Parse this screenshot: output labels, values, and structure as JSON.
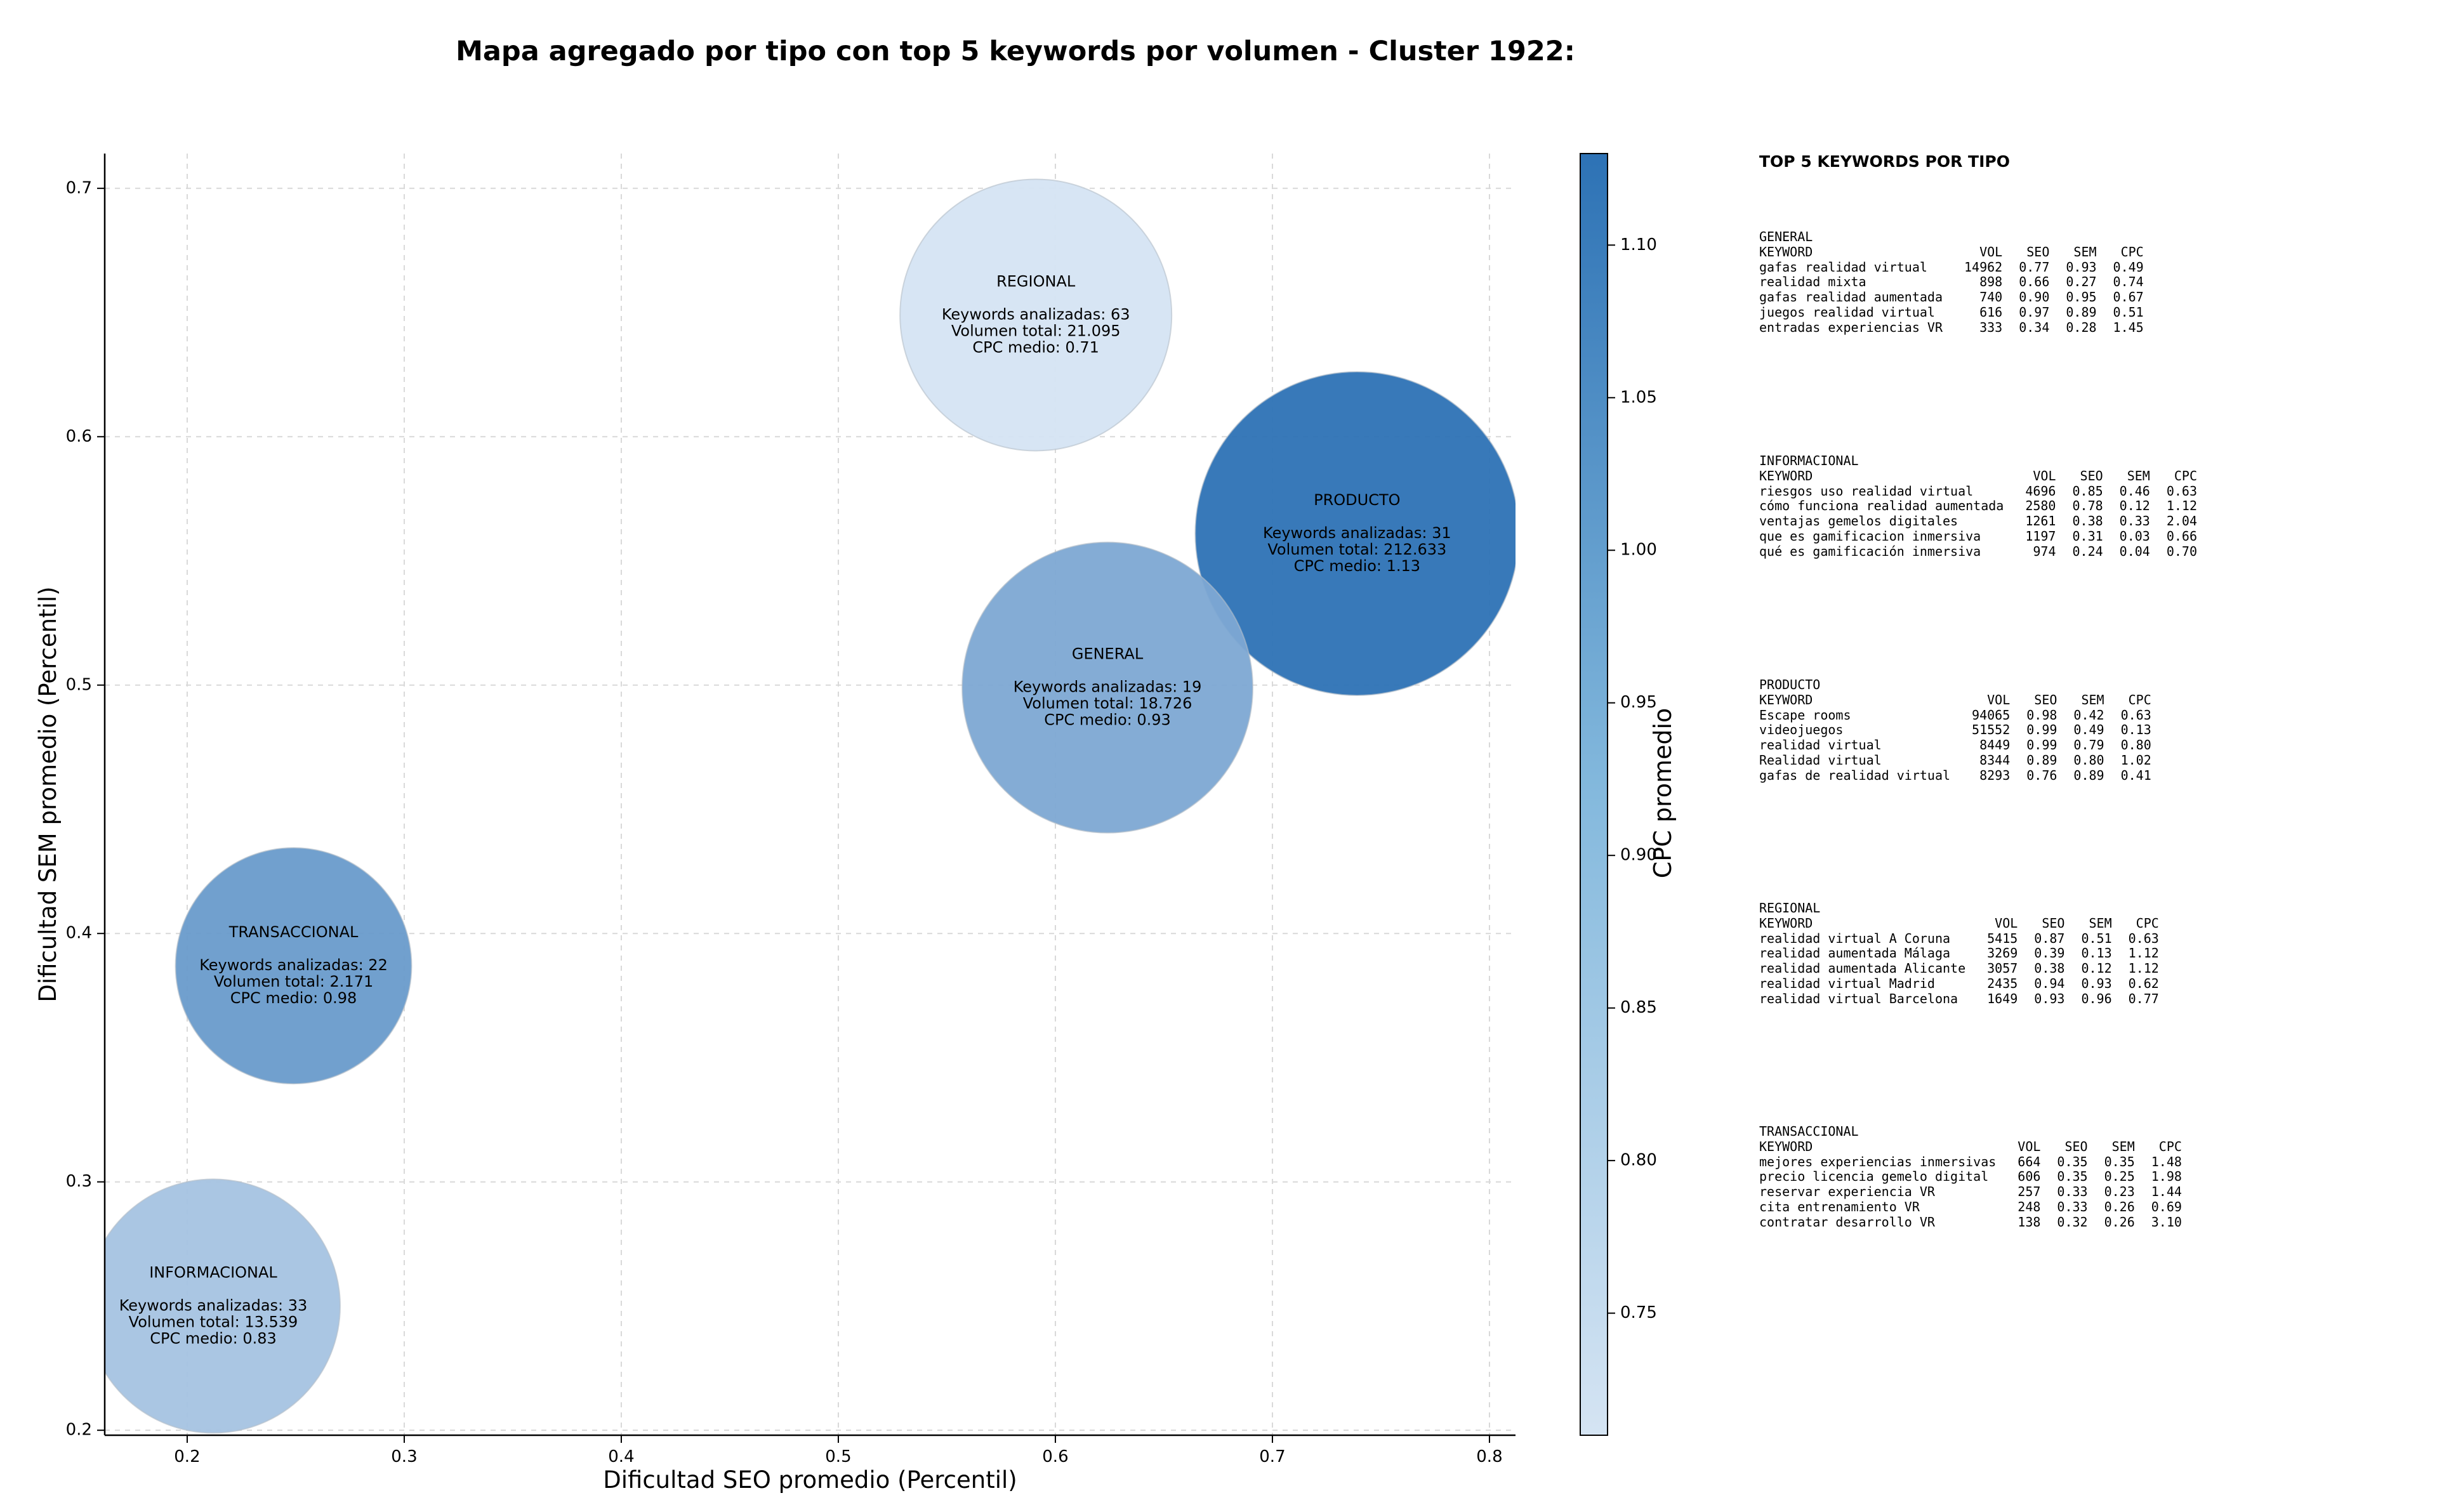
{
  "chart_data": {
    "type": "scatter",
    "title": "Mapa agregado por tipo con top 5 keywords por volumen - Cluster 1922:",
    "xlabel": "Dificultad SEO promedio (Percentil)",
    "ylabel": "Dificultad SEM promedio (Percentil)",
    "xlim": [
      0.162,
      0.812
    ],
    "ylim": [
      0.198,
      0.714
    ],
    "xticks": [
      "0.2",
      "0.3",
      "0.4",
      "0.5",
      "0.6",
      "0.7",
      "0.8"
    ],
    "yticks": [
      "0.2",
      "0.3",
      "0.4",
      "0.5",
      "0.6",
      "0.7"
    ],
    "grid": true,
    "colorbar": {
      "label": "CPC promedio",
      "range": [
        0.71,
        1.13
      ],
      "ticks": [
        "0.75",
        "0.80",
        "0.85",
        "0.90",
        "0.95",
        "1.00",
        "1.05",
        "1.10"
      ],
      "colors": [
        "#d5e4f3",
        "#2d72b5"
      ]
    },
    "points": [
      {
        "name": "REGIONAL",
        "x": 0.591,
        "y": 0.649,
        "keywords_label": "Keywords analizadas: 63",
        "volume_label": "Volumen total: 21.095",
        "cpc_label": "CPC medio: 0.71",
        "cpc": 0.71,
        "volume": 21095
      },
      {
        "name": "PRODUCTO",
        "x": 0.739,
        "y": 0.561,
        "keywords_label": "Keywords analizadas: 31",
        "volume_label": "Volumen total: 212.633",
        "cpc_label": "CPC medio: 1.13",
        "cpc": 1.13,
        "volume": 212633
      },
      {
        "name": "GENERAL",
        "x": 0.624,
        "y": 0.499,
        "keywords_label": "Keywords analizadas: 19",
        "volume_label": "Volumen total: 18.726",
        "cpc_label": "CPC medio: 0.93",
        "cpc": 0.93,
        "volume": 18726
      },
      {
        "name": "TRANSACCIONAL",
        "x": 0.249,
        "y": 0.387,
        "keywords_label": "Keywords analizadas: 22",
        "volume_label": "Volumen total: 2.171",
        "cpc_label": "CPC medio: 0.98",
        "cpc": 0.98,
        "volume": 2171
      },
      {
        "name": "INFORMACIONAL",
        "x": 0.212,
        "y": 0.25,
        "keywords_label": "Keywords analizadas: 33",
        "volume_label": "Volumen total: 13.539",
        "cpc_label": "CPC medio: 0.83",
        "cpc": 0.83,
        "volume": 13539
      }
    ]
  },
  "side_panel": {
    "title": "TOP 5 KEYWORDS POR TIPO",
    "headers": [
      "KEYWORD",
      "VOL",
      "SEO",
      "SEM",
      "CPC"
    ],
    "groups": [
      {
        "name": "GENERAL",
        "rows": [
          [
            "gafas realidad virtual",
            "14962",
            "0.77",
            "0.93",
            "0.49"
          ],
          [
            "realidad mixta",
            "898",
            "0.66",
            "0.27",
            "0.74"
          ],
          [
            "gafas realidad aumentada",
            "740",
            "0.90",
            "0.95",
            "0.67"
          ],
          [
            "juegos realidad virtual",
            "616",
            "0.97",
            "0.89",
            "0.51"
          ],
          [
            "entradas experiencias VR",
            "333",
            "0.34",
            "0.28",
            "1.45"
          ]
        ]
      },
      {
        "name": "INFORMACIONAL",
        "rows": [
          [
            "riesgos uso realidad virtual",
            "4696",
            "0.85",
            "0.46",
            "0.63"
          ],
          [
            "cómo funciona realidad aumentada",
            "2580",
            "0.78",
            "0.12",
            "1.12"
          ],
          [
            "ventajas gemelos digitales",
            "1261",
            "0.38",
            "0.33",
            "2.04"
          ],
          [
            "que es gamificacion inmersiva",
            "1197",
            "0.31",
            "0.03",
            "0.66"
          ],
          [
            "qué es gamificación inmersiva",
            "974",
            "0.24",
            "0.04",
            "0.70"
          ]
        ]
      },
      {
        "name": "PRODUCTO",
        "rows": [
          [
            "Escape rooms",
            "94065",
            "0.98",
            "0.42",
            "0.63"
          ],
          [
            "videojuegos",
            "51552",
            "0.99",
            "0.49",
            "0.13"
          ],
          [
            "realidad virtual",
            "8449",
            "0.99",
            "0.79",
            "0.80"
          ],
          [
            "Realidad virtual",
            "8344",
            "0.89",
            "0.80",
            "1.02"
          ],
          [
            "gafas de realidad virtual",
            "8293",
            "0.76",
            "0.89",
            "0.41"
          ]
        ]
      },
      {
        "name": "REGIONAL",
        "rows": [
          [
            "realidad virtual A Coruna",
            "5415",
            "0.87",
            "0.51",
            "0.63"
          ],
          [
            "realidad aumentada Málaga",
            "3269",
            "0.39",
            "0.13",
            "1.12"
          ],
          [
            "realidad aumentada Alicante",
            "3057",
            "0.38",
            "0.12",
            "1.12"
          ],
          [
            "realidad virtual Madrid",
            "2435",
            "0.94",
            "0.93",
            "0.62"
          ],
          [
            "realidad virtual Barcelona",
            "1649",
            "0.93",
            "0.96",
            "0.77"
          ]
        ]
      },
      {
        "name": "TRANSACCIONAL",
        "rows": [
          [
            "mejores experiencias inmersivas",
            "664",
            "0.35",
            "0.35",
            "1.48"
          ],
          [
            "precio licencia gemelo digital",
            "606",
            "0.35",
            "0.25",
            "1.98"
          ],
          [
            "reservar experiencia VR",
            "257",
            "0.33",
            "0.23",
            "1.44"
          ],
          [
            "cita entrenamiento VR",
            "248",
            "0.33",
            "0.26",
            "0.69"
          ],
          [
            "contratar desarrollo VR",
            "138",
            "0.32",
            "0.26",
            "3.10"
          ]
        ]
      }
    ]
  }
}
